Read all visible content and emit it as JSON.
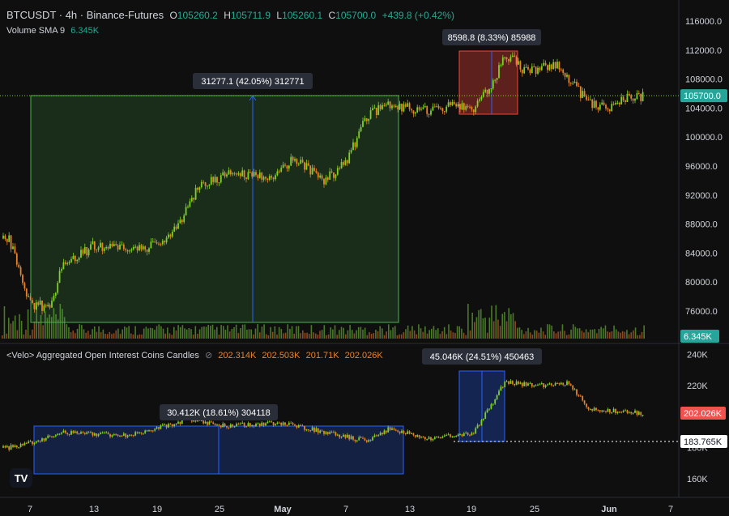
{
  "legend_main": {
    "symbol": "BTCUSDT · 4h · Binance-Futures",
    "o_label": "O",
    "o_val": "105260.2",
    "h_label": "H",
    "h_val": "105711.9",
    "l_label": "L",
    "l_val": "105260.1",
    "c_label": "C",
    "c_val": "105700.0",
    "change": "+439.8 (+0.42%)"
  },
  "legend_volume": {
    "label": "Volume SMA 9",
    "value": "6.345K"
  },
  "legend_oi": {
    "label": "<Velo> Aggregated Open Interest Coins Candles",
    "settings": "⊘",
    "o": "202.314K",
    "h": "202.503K",
    "l": "201.71K",
    "c": "202.026K"
  },
  "price_axis": {
    "ticks": [
      "116000.0",
      "112000.0",
      "108000.0",
      "104000.0",
      "100000.0",
      "96000.0",
      "92000.0",
      "88000.0",
      "84000.0",
      "80000.0",
      "76000.0"
    ],
    "current": "105700.0",
    "volume_badge": "6.345K"
  },
  "oi_axis": {
    "ticks": [
      "240K",
      "220K",
      "180K",
      "160K"
    ],
    "current": "202.026K",
    "marker": "183.765K"
  },
  "time_axis": [
    "7",
    "13",
    "19",
    "25",
    "May",
    "7",
    "13",
    "19",
    "25",
    "Jun",
    "7"
  ],
  "measures": {
    "price_big": "31277.1 (42.05%) 312771",
    "price_small": "8598.8 (8.33%) 85988",
    "oi_big": "30.412K (18.61%) 304118",
    "oi_small": "45.046K (24.51%) 450463"
  },
  "colors": {
    "up": "#26a69a",
    "down": "#ef5350",
    "candle_up": "#7ed321",
    "candle_down": "#e8832a",
    "accent_blue": "#2962ff"
  },
  "logo": "TV",
  "chart_data": {
    "type": "line",
    "series": [
      {
        "name": "BTCUSDT",
        "x": [
          "Apr 5",
          "Apr 7",
          "Apr 9",
          "Apr 10",
          "Apr 13",
          "Apr 16",
          "Apr 19",
          "Apr 21",
          "Apr 23",
          "Apr 26",
          "Apr 30",
          "May 2",
          "May 5",
          "May 7",
          "May 9",
          "May 11",
          "May 13",
          "May 15",
          "May 17",
          "May 19",
          "May 21",
          "May 22",
          "May 24",
          "May 27",
          "May 30",
          "Jun 1",
          "Jun 3",
          "Jun 5"
        ],
        "values": [
          86000,
          77000,
          76500,
          82000,
          85000,
          84500,
          85000,
          87500,
          93500,
          95000,
          94500,
          97000,
          94000,
          96500,
          103000,
          104500,
          104000,
          103500,
          104500,
          104000,
          108000,
          111500,
          109000,
          110000,
          104500,
          104000,
          105500,
          105700
        ]
      }
    ],
    "oi": {
      "x": [
        "Apr 5",
        "Apr 7",
        "Apr 10",
        "Apr 16",
        "Apr 22",
        "Apr 25",
        "May 1",
        "May 5",
        "May 9",
        "May 11",
        "May 15",
        "May 19",
        "May 22",
        "May 25",
        "May 28",
        "May 30",
        "Jun 5"
      ],
      "values": [
        180,
        183,
        190,
        188,
        198,
        194,
        196,
        190,
        184,
        192,
        186,
        189,
        222,
        220,
        222,
        205,
        202
      ]
    },
    "ylim": [
      74000,
      118000
    ]
  }
}
